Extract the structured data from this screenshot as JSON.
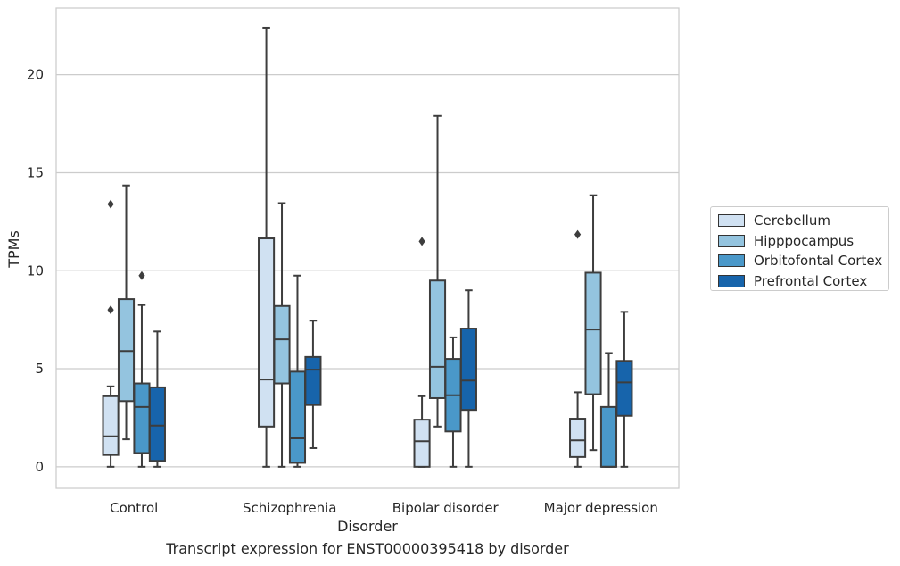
{
  "chart_data": {
    "type": "box",
    "title": "Transcript expression for ENST00000395418 by disorder",
    "xlabel": "Disorder",
    "ylabel": "TPMs",
    "ylim": [
      -1.1,
      23.4
    ],
    "yticks": [
      0,
      5,
      10,
      15,
      20
    ],
    "grid": "horizontal",
    "legend_position": "right",
    "categories": [
      "Control",
      "Schizophrenia",
      "Bipolar disorder",
      "Major depression"
    ],
    "series": [
      {
        "name": "Cerebellum",
        "color": "#d0e1f2",
        "boxes": [
          {
            "whisker_low": 0,
            "q1": 0.6,
            "median": 1.55,
            "q3": 3.6,
            "whisker_high": 4.1,
            "outliers": [
              8.0,
              13.4
            ]
          },
          {
            "whisker_low": 0,
            "q1": 2.05,
            "median": 4.45,
            "q3": 11.65,
            "whisker_high": 22.4,
            "outliers": []
          },
          {
            "whisker_low": 0,
            "q1": 0,
            "median": 1.3,
            "q3": 2.4,
            "whisker_high": 3.6,
            "outliers": [
              11.5
            ]
          },
          {
            "whisker_low": 0,
            "q1": 0.5,
            "median": 1.35,
            "q3": 2.45,
            "whisker_high": 3.8,
            "outliers": [
              11.85
            ]
          }
        ]
      },
      {
        "name": "Hipppocampus",
        "color": "#94c4df",
        "boxes": [
          {
            "whisker_low": 1.4,
            "q1": 3.35,
            "median": 5.9,
            "q3": 8.55,
            "whisker_high": 14.35,
            "outliers": []
          },
          {
            "whisker_low": 0,
            "q1": 4.25,
            "median": 6.5,
            "q3": 8.2,
            "whisker_high": 13.45,
            "outliers": []
          },
          {
            "whisker_low": 2.05,
            "q1": 3.5,
            "median": 5.1,
            "q3": 9.5,
            "whisker_high": 17.9,
            "outliers": []
          },
          {
            "whisker_low": 0.85,
            "q1": 3.7,
            "median": 7.0,
            "q3": 9.9,
            "whisker_high": 13.85,
            "outliers": []
          }
        ]
      },
      {
        "name": "Orbitofontal Cortex",
        "color": "#4a98c9",
        "boxes": [
          {
            "whisker_low": 0,
            "q1": 0.7,
            "median": 3.05,
            "q3": 4.25,
            "whisker_high": 8.25,
            "outliers": [
              9.75
            ]
          },
          {
            "whisker_low": 0,
            "q1": 0.2,
            "median": 1.45,
            "q3": 4.85,
            "whisker_high": 9.75,
            "outliers": []
          },
          {
            "whisker_low": 0,
            "q1": 1.8,
            "median": 3.65,
            "q3": 5.5,
            "whisker_high": 6.6,
            "outliers": []
          },
          {
            "whisker_low": 0,
            "q1": 0,
            "median": 0,
            "q3": 3.05,
            "whisker_high": 5.8,
            "outliers": []
          }
        ]
      },
      {
        "name": "Prefrontal Cortex",
        "color": "#1764ab",
        "boxes": [
          {
            "whisker_low": 0,
            "q1": 0.3,
            "median": 2.1,
            "q3": 4.05,
            "whisker_high": 6.9,
            "outliers": []
          },
          {
            "whisker_low": 0.95,
            "q1": 3.15,
            "median": 4.95,
            "q3": 5.6,
            "whisker_high": 7.45,
            "outliers": []
          },
          {
            "whisker_low": 0,
            "q1": 2.9,
            "median": 4.4,
            "q3": 7.05,
            "whisker_high": 9.0,
            "outliers": []
          },
          {
            "whisker_low": 0,
            "q1": 2.6,
            "median": 4.3,
            "q3": 5.4,
            "whisker_high": 7.9,
            "outliers": []
          }
        ]
      }
    ]
  }
}
